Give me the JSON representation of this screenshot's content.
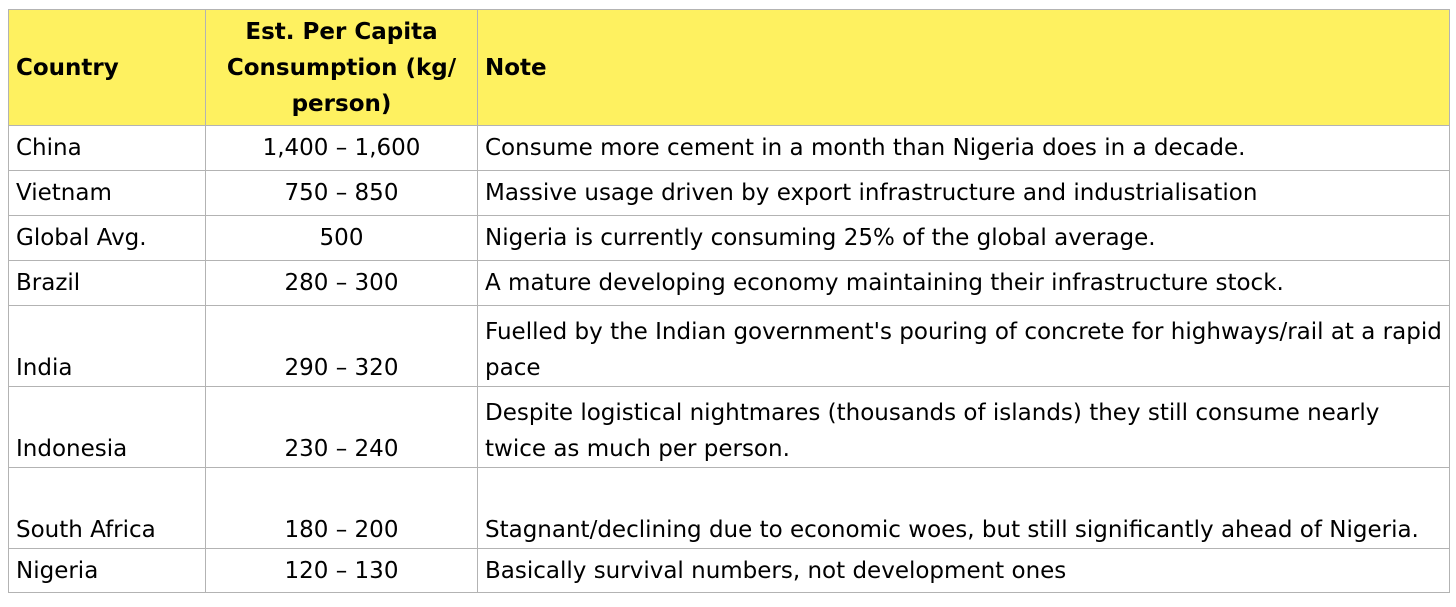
{
  "table": {
    "headers": {
      "country": "Country",
      "consumption": "Est. Per Capita Consumption (kg/ person)",
      "note": "Note"
    },
    "rows": [
      {
        "country": "China",
        "consumption": "1,400 – 1,600",
        "note": "Consume more cement in a month than Nigeria does in a decade."
      },
      {
        "country": "Vietnam",
        "consumption": "750 – 850",
        "note": "Massive usage driven by export infrastructure and industrialisation"
      },
      {
        "country": "Global Avg.",
        "consumption": "500",
        "note": "Nigeria is currently consuming 25% of the global average."
      },
      {
        "country": "Brazil",
        "consumption": "280 – 300",
        "note": "A mature developing economy maintaining their infrastructure stock."
      },
      {
        "country": "India",
        "consumption": "290 – 320",
        "note": "Fuelled by the Indian government's pouring of concrete for highways/rail at a rapid pace"
      },
      {
        "country": "Indonesia",
        "consumption": "230 – 240",
        "note": "Despite logistical nightmares (thousands of islands) they still consume nearly twice as much per person."
      },
      {
        "country": "South Africa",
        "consumption": "180 – 200",
        "note": "Stagnant/declining due to economic woes, but still significantly ahead of Nigeria."
      },
      {
        "country": "Nigeria",
        "consumption": "120 – 130",
        "note": "Basically survival numbers, not development ones"
      }
    ]
  },
  "colors": {
    "header_background": "#fef160",
    "border": "#b3b3b3"
  }
}
